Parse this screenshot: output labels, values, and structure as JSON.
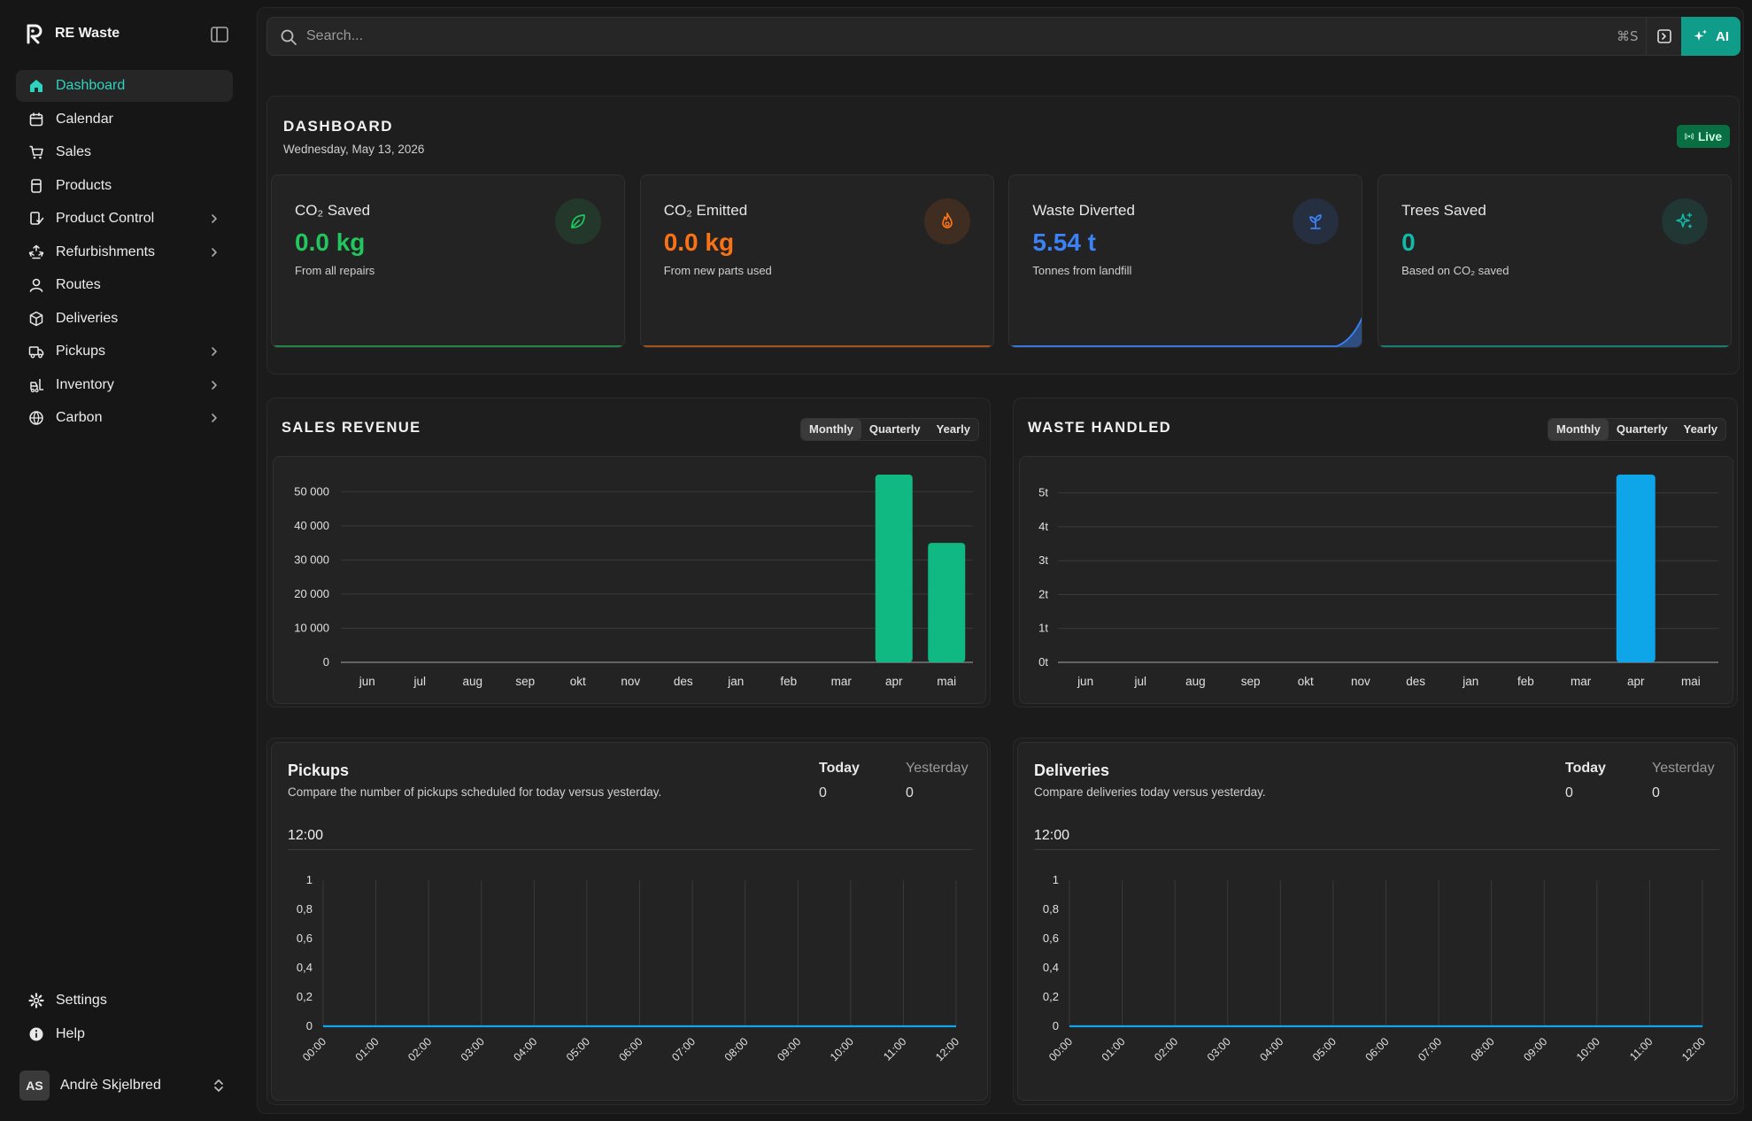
{
  "sidebar": {
    "brand": "RE Waste",
    "nav": [
      {
        "label": "Dashboard",
        "icon": "home-icon",
        "active": true,
        "chevron": false
      },
      {
        "label": "Calendar",
        "icon": "calendar-icon",
        "chevron": false
      },
      {
        "label": "Sales",
        "icon": "cart-icon",
        "chevron": false
      },
      {
        "label": "Products",
        "icon": "product-icon",
        "chevron": false
      },
      {
        "label": "Product Control",
        "icon": "product-control-icon",
        "chevron": true
      },
      {
        "label": "Refurbishments",
        "icon": "recycle-icon",
        "chevron": true
      },
      {
        "label": "Routes",
        "icon": "route-icon",
        "chevron": false
      },
      {
        "label": "Deliveries",
        "icon": "package-icon",
        "chevron": false
      },
      {
        "label": "Pickups",
        "icon": "truck-icon",
        "chevron": true
      },
      {
        "label": "Inventory",
        "icon": "forklift-icon",
        "chevron": true
      },
      {
        "label": "Carbon",
        "icon": "globe-icon",
        "chevron": true
      }
    ],
    "bottom": [
      {
        "label": "Settings",
        "icon": "gear-icon"
      },
      {
        "label": "Help",
        "icon": "help-icon"
      }
    ],
    "user": {
      "initials": "AS",
      "name": "Andrè Skjelbred"
    }
  },
  "search": {
    "placeholder": "Search...",
    "shortcut": "⌘S",
    "ai_label": "AI"
  },
  "dashboard": {
    "title": "DASHBOARD",
    "date": "Wednesday, May 13, 2026",
    "live_label": "Live",
    "stats": [
      {
        "label": "CO₂ Saved",
        "value": "0.0 kg",
        "sub": "From all repairs",
        "icon": "leaf-icon",
        "color": "#22c55e"
      },
      {
        "label": "CO₂ Emitted",
        "value": "0.0 kg",
        "sub": "From new parts used",
        "icon": "flame-icon",
        "color": "#f97316"
      },
      {
        "label": "Waste Diverted",
        "value": "5.54 t",
        "sub": "Tonnes from landfill",
        "icon": "sprout-icon",
        "color": "#3b82f6"
      },
      {
        "label": "Trees Saved",
        "value": "0",
        "sub": "Based on CO₂ saved",
        "icon": "sparkles-icon",
        "color": "#14b8a6"
      }
    ]
  },
  "sales_revenue": {
    "title": "SALES REVENUE",
    "periods": [
      "Monthly",
      "Quarterly",
      "Yearly"
    ],
    "active_period": "Monthly"
  },
  "waste_handled": {
    "title": "WASTE HANDLED",
    "periods": [
      "Monthly",
      "Quarterly",
      "Yearly"
    ],
    "active_period": "Monthly"
  },
  "pickups": {
    "title": "Pickups",
    "description": "Compare the number of pickups scheduled for today versus yesterday.",
    "today_label": "Today",
    "today_value": "0",
    "yesterday_label": "Yesterday",
    "yesterday_value": "0",
    "time_label": "12:00"
  },
  "deliveries": {
    "title": "Deliveries",
    "description": "Compare deliveries today versus yesterday.",
    "today_label": "Today",
    "today_value": "0",
    "yesterday_label": "Yesterday",
    "yesterday_value": "0",
    "time_label": "12:00"
  },
  "chart_data": [
    {
      "type": "bar",
      "categories": [
        "jun",
        "jul",
        "aug",
        "sep",
        "okt",
        "nov",
        "des",
        "jan",
        "feb",
        "mar",
        "apr",
        "mai"
      ],
      "values": [
        0,
        0,
        0,
        0,
        0,
        0,
        0,
        0,
        0,
        0,
        55000,
        35000
      ],
      "ylim": [
        0,
        55000
      ],
      "yticks": [
        0,
        10000,
        20000,
        30000,
        40000,
        50000
      ],
      "ytick_labels": [
        "0",
        "10 000",
        "20 000",
        "30 000",
        "40 000",
        "50 000"
      ],
      "grid": true,
      "color": "#10b981"
    },
    {
      "type": "bar",
      "categories": [
        "jun",
        "jul",
        "aug",
        "sep",
        "okt",
        "nov",
        "des",
        "jan",
        "feb",
        "mar",
        "apr",
        "mai"
      ],
      "values": [
        0,
        0,
        0,
        0,
        0,
        0,
        0,
        0,
        0,
        0,
        5.54,
        0
      ],
      "ylim": [
        0,
        5.54
      ],
      "yticks": [
        0,
        1,
        2,
        3,
        4,
        5
      ],
      "ytick_labels": [
        "0t",
        "1t",
        "2t",
        "3t",
        "4t",
        "5t"
      ],
      "grid": true,
      "color": "#0ea5e9"
    },
    {
      "type": "line",
      "x": [
        "00:00",
        "01:00",
        "02:00",
        "03:00",
        "04:00",
        "05:00",
        "06:00",
        "07:00",
        "08:00",
        "09:00",
        "10:00",
        "11:00",
        "12:00"
      ],
      "series": [
        {
          "values": [
            0,
            0,
            0,
            0,
            0,
            0,
            0,
            0,
            0,
            0,
            0,
            0,
            0
          ]
        }
      ],
      "ylim": [
        0,
        1
      ],
      "yticks": [
        0,
        0.2,
        0.4,
        0.6,
        0.8,
        1
      ],
      "ytick_labels": [
        "0",
        "0,2",
        "0,4",
        "0,6",
        "0,8",
        "1"
      ],
      "grid": true,
      "color": "#0ea5e9"
    },
    {
      "type": "line",
      "x": [
        "00:00",
        "01:00",
        "02:00",
        "03:00",
        "04:00",
        "05:00",
        "06:00",
        "07:00",
        "08:00",
        "09:00",
        "10:00",
        "11:00",
        "12:00"
      ],
      "series": [
        {
          "values": [
            0,
            0,
            0,
            0,
            0,
            0,
            0,
            0,
            0,
            0,
            0,
            0,
            0
          ]
        }
      ],
      "ylim": [
        0,
        1
      ],
      "yticks": [
        0,
        0.2,
        0.4,
        0.6,
        0.8,
        1
      ],
      "ytick_labels": [
        "0",
        "0,2",
        "0,4",
        "0,6",
        "0,8",
        "1"
      ],
      "grid": true,
      "color": "#0ea5e9"
    }
  ]
}
